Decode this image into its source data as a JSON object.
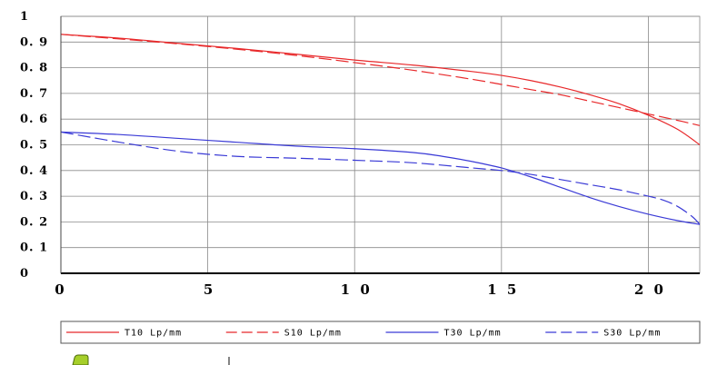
{
  "chart_data": {
    "type": "line",
    "xlim": [
      0,
      21.75
    ],
    "ylim": [
      0,
      1
    ],
    "x_ticks": [
      "0",
      "5",
      "1 0",
      "1 5",
      "2 0"
    ],
    "x_tick_values": [
      0,
      5,
      10,
      15,
      20
    ],
    "y_ticks": [
      "0",
      "0. 1",
      "0. 2",
      "0. 3",
      "0. 4",
      "0. 5",
      "0. 6",
      "0. 7",
      "0. 8",
      "0. 9",
      "1"
    ],
    "y_tick_values": [
      0,
      0.1,
      0.2,
      0.3,
      0.4,
      0.5,
      0.6,
      0.7,
      0.8,
      0.9,
      1
    ],
    "grid": true,
    "legend_position": "bottom",
    "series": [
      {
        "name": "T10 Lp/mm",
        "color": "#e8282a",
        "dash": "solid",
        "x": [
          0,
          2,
          4,
          6,
          8,
          10,
          12,
          14,
          15,
          16,
          17,
          18,
          19,
          20,
          21,
          21.75
        ],
        "y": [
          0.93,
          0.915,
          0.895,
          0.875,
          0.853,
          0.83,
          0.81,
          0.785,
          0.77,
          0.75,
          0.725,
          0.695,
          0.66,
          0.615,
          0.56,
          0.5
        ]
      },
      {
        "name": "S10 Lp/mm",
        "color": "#e8282a",
        "dash": "dashed",
        "x": [
          0,
          2,
          4,
          6,
          8,
          10,
          12,
          14,
          15,
          16,
          17,
          18,
          19,
          20,
          21,
          21.75
        ],
        "y": [
          0.93,
          0.912,
          0.893,
          0.872,
          0.848,
          0.82,
          0.79,
          0.755,
          0.735,
          0.715,
          0.695,
          0.67,
          0.645,
          0.62,
          0.595,
          0.575
        ]
      },
      {
        "name": "T30 Lp/mm",
        "color": "#3a3ad6",
        "dash": "solid",
        "x": [
          0,
          2,
          4,
          6,
          8,
          10,
          12,
          13,
          14,
          15,
          16,
          17,
          18,
          19,
          20,
          21,
          21.75
        ],
        "y": [
          0.55,
          0.54,
          0.525,
          0.51,
          0.495,
          0.485,
          0.47,
          0.455,
          0.435,
          0.41,
          0.375,
          0.335,
          0.295,
          0.26,
          0.23,
          0.205,
          0.19
        ]
      },
      {
        "name": "S30 Lp/mm",
        "color": "#3a3ad6",
        "dash": "dashed",
        "x": [
          0,
          2,
          4,
          6,
          8,
          10,
          12,
          14,
          15,
          16,
          17,
          18,
          19,
          20,
          20.5,
          21,
          21.5,
          21.75
        ],
        "y": [
          0.55,
          0.51,
          0.475,
          0.455,
          0.448,
          0.44,
          0.43,
          0.41,
          0.4,
          0.385,
          0.365,
          0.345,
          0.325,
          0.3,
          0.285,
          0.26,
          0.22,
          0.19
        ]
      }
    ]
  }
}
